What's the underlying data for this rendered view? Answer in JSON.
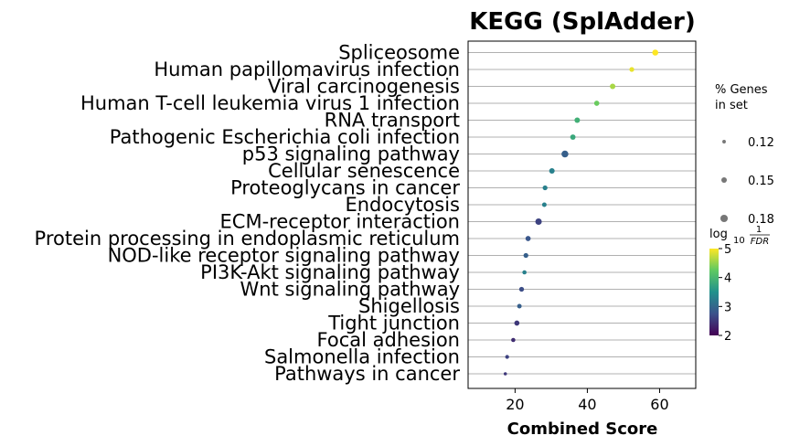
{
  "chart_data": {
    "type": "scatter",
    "title": "KEGG (SplAdder)",
    "xlabel": "Combined Score",
    "xlim": [
      7,
      70
    ],
    "xticks": [
      20,
      40,
      60
    ],
    "grid": "horizontal",
    "categories": [
      "Spliceosome",
      "Human papillomavirus infection",
      "Viral carcinogenesis",
      "Human T-cell leukemia virus 1 infection",
      "RNA transport",
      "Pathogenic Escherichia coli infection",
      "p53 signaling pathway",
      "Cellular senescence",
      "Proteoglycans in cancer",
      "Endocytosis",
      "ECM-receptor interaction",
      "Protein processing in endoplasmic reticulum",
      "NOD-like receptor signaling pathway",
      "PI3K-Akt signaling pathway",
      "Wnt signaling pathway",
      "Shigellosis",
      "Tight junction",
      "Focal adhesion",
      "Salmonella infection",
      "Pathways in cancer"
    ],
    "points": [
      {
        "x": 58.8,
        "log10_inv_fdr": 5.0,
        "pct_genes": 0.158
      },
      {
        "x": 52.3,
        "log10_inv_fdr": 4.9,
        "pct_genes": 0.14
      },
      {
        "x": 47.0,
        "log10_inv_fdr": 4.6,
        "pct_genes": 0.15
      },
      {
        "x": 42.6,
        "log10_inv_fdr": 4.3,
        "pct_genes": 0.145
      },
      {
        "x": 37.2,
        "log10_inv_fdr": 3.9,
        "pct_genes": 0.15
      },
      {
        "x": 36.0,
        "log10_inv_fdr": 3.8,
        "pct_genes": 0.148
      },
      {
        "x": 33.8,
        "log10_inv_fdr": 2.9,
        "pct_genes": 0.172
      },
      {
        "x": 30.2,
        "log10_inv_fdr": 3.3,
        "pct_genes": 0.15
      },
      {
        "x": 28.3,
        "log10_inv_fdr": 3.3,
        "pct_genes": 0.14
      },
      {
        "x": 28.1,
        "log10_inv_fdr": 3.3,
        "pct_genes": 0.135
      },
      {
        "x": 26.5,
        "log10_inv_fdr": 2.6,
        "pct_genes": 0.165
      },
      {
        "x": 23.6,
        "log10_inv_fdr": 2.8,
        "pct_genes": 0.145
      },
      {
        "x": 23.0,
        "log10_inv_fdr": 2.9,
        "pct_genes": 0.14
      },
      {
        "x": 22.6,
        "log10_inv_fdr": 3.3,
        "pct_genes": 0.13
      },
      {
        "x": 21.8,
        "log10_inv_fdr": 2.7,
        "pct_genes": 0.14
      },
      {
        "x": 21.2,
        "log10_inv_fdr": 2.9,
        "pct_genes": 0.135
      },
      {
        "x": 20.5,
        "log10_inv_fdr": 2.5,
        "pct_genes": 0.145
      },
      {
        "x": 19.5,
        "log10_inv_fdr": 2.4,
        "pct_genes": 0.13
      },
      {
        "x": 17.8,
        "log10_inv_fdr": 2.6,
        "pct_genes": 0.125
      },
      {
        "x": 17.3,
        "log10_inv_fdr": 2.5,
        "pct_genes": 0.115
      }
    ],
    "size_legend": {
      "title_line1": "% Genes",
      "title_line2": "in set",
      "entries": [
        "0.12",
        "0.15",
        "0.18"
      ],
      "values": [
        0.12,
        0.15,
        0.18
      ]
    },
    "color_legend": {
      "title_main": "log",
      "title_sub": "10",
      "title_num": "1",
      "title_den": "FDR",
      "colormap": "viridis",
      "range": [
        2,
        5
      ],
      "ticks": [
        "2",
        "3",
        "4",
        "5"
      ]
    },
    "legend_placement": "right"
  }
}
